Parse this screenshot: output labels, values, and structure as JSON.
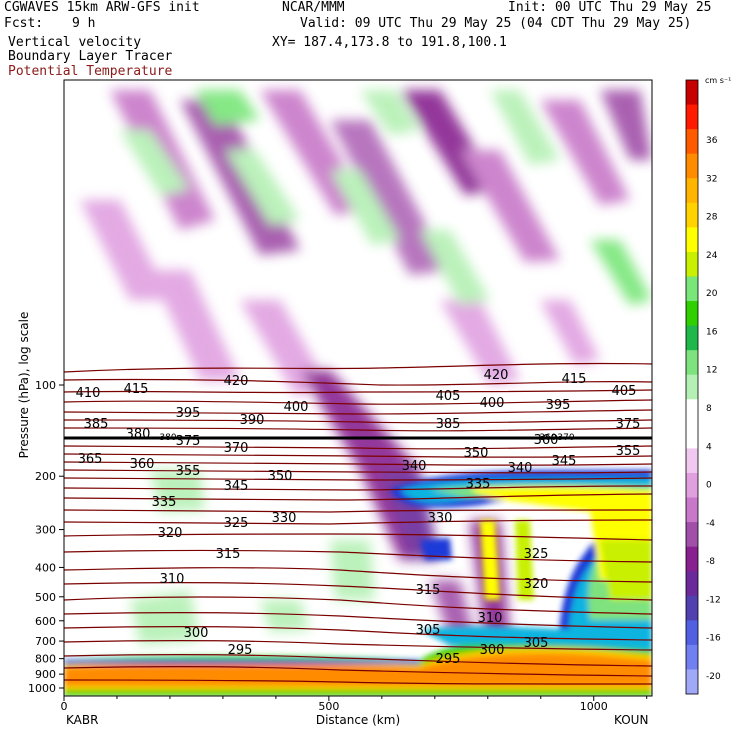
{
  "header": {
    "model_line": "CGWAVES 15km ARW-GFS init",
    "center": "NCAR/MMM",
    "init": "Init: 00 UTC Thu 29 May 25",
    "fcst_label": "Fcst:",
    "fcst_value": "9 h",
    "valid": "Valid: 09 UTC Thu 29 May 25 (04 CDT Thu 29 May 25)",
    "xy": "XY= 187.4,173.8 to 191.8,100.1",
    "field1": "Vertical velocity",
    "field2": "Boundary Layer Tracer",
    "field3": "Potential Temperature",
    "field3_color": "#8b1a1a"
  },
  "chart_data": {
    "type": "heatmap",
    "xlabel": "Distance (km)",
    "ylabel": "Pressure (hPa), log scale",
    "x_ticks": [
      0,
      500,
      1000
    ],
    "xlim": [
      0,
      1110
    ],
    "y_ticks": [
      100,
      200,
      300,
      400,
      500,
      600,
      700,
      800,
      900,
      1000
    ],
    "y_scale": "log",
    "left_station": "KABR",
    "right_station": "KOUN",
    "colorbar": {
      "unit": "cm s⁻¹",
      "labels": [
        36,
        32,
        28,
        24,
        20,
        16,
        12,
        8,
        4,
        0,
        -4,
        -8,
        -12,
        -16,
        -20
      ],
      "colors": [
        "#c70000",
        "#ff1a00",
        "#ff5a00",
        "#ff8c00",
        "#ffb400",
        "#ffd200",
        "#ffff00",
        "#c8f000",
        "#78e678",
        "#30d000",
        "#20b84a",
        "#7ee27e",
        "#b4f0b4",
        "#ffffff",
        "#ffffff",
        "#f0c8f0",
        "#e0a0e0",
        "#c878c8",
        "#a050a8",
        "#882090",
        "#6a2a9a",
        "#5040b0",
        "#5060e0",
        "#7080f0",
        "#a0a8f8"
      ]
    },
    "isentropes": {
      "label_values": [
        295,
        300,
        305,
        310,
        315,
        320,
        325,
        330,
        335,
        340,
        345,
        350,
        355,
        360,
        365,
        370,
        375,
        380,
        385,
        390,
        395,
        400,
        405,
        410,
        415,
        420
      ],
      "tropopause_labels": [
        "380",
        "360",
        "370"
      ],
      "line_color": "#7a0000"
    }
  }
}
